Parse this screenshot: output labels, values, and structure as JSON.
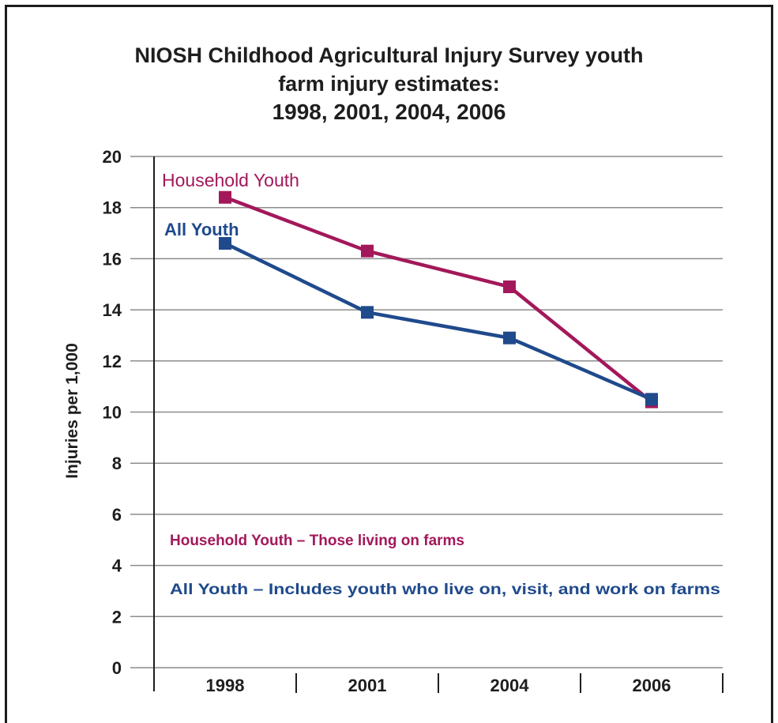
{
  "title_lines": [
    "NIOSH Childhood Agricultural Injury Survey youth",
    "farm injury estimates:",
    "1998, 2001, 2004, 2006"
  ],
  "colors": {
    "household": "#a3185a",
    "all": "#1f4a8c",
    "grid": "#8c8c8c",
    "text": "#1e1e1e"
  },
  "chart_data": {
    "type": "line",
    "title": "NIOSH Childhood Agricultural Injury Survey youth farm injury estimates: 1998, 2001, 2004, 2006",
    "xlabel": "",
    "ylabel": "Injuries per 1,000",
    "categories": [
      "1998",
      "2001",
      "2004",
      "2006"
    ],
    "ylim": [
      0,
      20
    ],
    "yticks": [
      "0",
      "2",
      "4",
      "6",
      "8",
      "10",
      "12",
      "14",
      "16",
      "18",
      "20"
    ],
    "grid": true,
    "series": [
      {
        "name": "Household Youth",
        "values": [
          18.4,
          16.3,
          14.9,
          10.4
        ]
      },
      {
        "name": "All Youth",
        "values": [
          16.6,
          13.9,
          12.9,
          10.5
        ]
      }
    ],
    "annotations": [
      "Household Youth – Those living on farms",
      "All Youth – Includes youth who live on, visit, and work on farms"
    ]
  }
}
